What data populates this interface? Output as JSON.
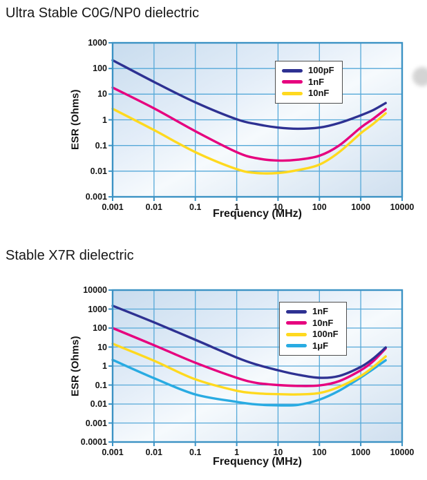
{
  "colors": {
    "background": "#ffffff",
    "grid": "#55a8d8",
    "plot_border": "#3b92c4",
    "plot_bg": [
      "#c8dcee",
      "#e3edf8",
      "#f6fafd",
      "#cfdfef"
    ],
    "legend_border": "#4d4d4d",
    "text": "#141414",
    "decoration_circle": "#c6c6c6"
  },
  "chart_data": [
    {
      "type": "line",
      "title": "Ultra Stable C0G/NP0 dielectric",
      "xlabel": "Frequency (MHz)",
      "ylabel": "ESR (Ohms)",
      "x_scale": "log",
      "y_scale": "log",
      "grid": true,
      "legend_position": "top-right",
      "x_ticks": [
        "0.001",
        "0.01",
        "0.1",
        "1",
        "10",
        "100",
        "1000",
        "10000"
      ],
      "y_ticks": [
        "1000",
        "100",
        "10",
        "1",
        "0.1",
        "0.01",
        "0.001"
      ],
      "xlog_range": [
        -3,
        4
      ],
      "ylog_range": [
        -3,
        3
      ],
      "series": [
        {
          "name": "100pF",
          "color": "#2e3192",
          "points": [
            [
              0.001,
              210
            ],
            [
              0.01,
              30
            ],
            [
              0.1,
              4.8
            ],
            [
              1,
              1.05
            ],
            [
              3,
              0.68
            ],
            [
              10,
              0.5
            ],
            [
              30,
              0.45
            ],
            [
              100,
              0.5
            ],
            [
              300,
              0.75
            ],
            [
              1000,
              1.5
            ],
            [
              2000,
              2.4
            ],
            [
              4000,
              4.5
            ]
          ]
        },
        {
          "name": "1nF",
          "color": "#e6007e",
          "points": [
            [
              0.001,
              18
            ],
            [
              0.01,
              2.8
            ],
            [
              0.1,
              0.36
            ],
            [
              1,
              0.055
            ],
            [
              3,
              0.032
            ],
            [
              10,
              0.026
            ],
            [
              30,
              0.028
            ],
            [
              100,
              0.04
            ],
            [
              300,
              0.1
            ],
            [
              1000,
              0.5
            ],
            [
              2000,
              1.1
            ],
            [
              4000,
              2.6
            ]
          ]
        },
        {
          "name": "10nF",
          "color": "#ffd91f",
          "points": [
            [
              0.001,
              2.7
            ],
            [
              0.01,
              0.4
            ],
            [
              0.1,
              0.055
            ],
            [
              1,
              0.012
            ],
            [
              3,
              0.0085
            ],
            [
              10,
              0.0085
            ],
            [
              30,
              0.011
            ],
            [
              100,
              0.018
            ],
            [
              300,
              0.055
            ],
            [
              1000,
              0.3
            ],
            [
              2000,
              0.7
            ],
            [
              4000,
              1.8
            ]
          ]
        }
      ]
    },
    {
      "type": "line",
      "title": "Stable X7R dielectric",
      "xlabel": "Frequency (MHz)",
      "ylabel": "ESR (Ohms)",
      "x_scale": "log",
      "y_scale": "log",
      "grid": true,
      "legend_position": "top-right",
      "x_ticks": [
        "0.001",
        "0.01",
        "0.1",
        "1",
        "10",
        "100",
        "1000",
        "10000"
      ],
      "y_ticks": [
        "10000",
        "1000",
        "100",
        "10",
        "1",
        "0.1",
        "0.01",
        "0.001",
        "0.0001"
      ],
      "xlog_range": [
        -3,
        4
      ],
      "ylog_range": [
        -4,
        4
      ],
      "series": [
        {
          "name": "1nF",
          "color": "#2e3192",
          "points": [
            [
              0.001,
              1500
            ],
            [
              0.01,
              200
            ],
            [
              0.1,
              24
            ],
            [
              1,
              2.8
            ],
            [
              3,
              1.2
            ],
            [
              10,
              0.6
            ],
            [
              30,
              0.35
            ],
            [
              100,
              0.24
            ],
            [
              300,
              0.3
            ],
            [
              1000,
              0.9
            ],
            [
              2000,
              2.5
            ],
            [
              4000,
              9.5
            ]
          ]
        },
        {
          "name": "10nF",
          "color": "#e6007e",
          "points": [
            [
              0.001,
              100
            ],
            [
              0.01,
              12.5
            ],
            [
              0.1,
              1.5
            ],
            [
              1,
              0.24
            ],
            [
              3,
              0.13
            ],
            [
              10,
              0.1
            ],
            [
              30,
              0.09
            ],
            [
              100,
              0.095
            ],
            [
              300,
              0.16
            ],
            [
              1000,
              0.6
            ],
            [
              2000,
              1.8
            ],
            [
              4000,
              8.5
            ]
          ]
        },
        {
          "name": "100nF",
          "color": "#ffd91f",
          "points": [
            [
              0.001,
              15
            ],
            [
              0.01,
              1.9
            ],
            [
              0.1,
              0.2
            ],
            [
              1,
              0.05
            ],
            [
              3,
              0.037
            ],
            [
              10,
              0.033
            ],
            [
              30,
              0.032
            ],
            [
              100,
              0.038
            ],
            [
              300,
              0.08
            ],
            [
              1000,
              0.3
            ],
            [
              2000,
              0.9
            ],
            [
              4000,
              3.2
            ]
          ]
        },
        {
          "name": "1μF",
          "color": "#29abe2",
          "points": [
            [
              0.001,
              2.1
            ],
            [
              0.01,
              0.23
            ],
            [
              0.1,
              0.032
            ],
            [
              1,
              0.013
            ],
            [
              3,
              0.0095
            ],
            [
              10,
              0.0085
            ],
            [
              30,
              0.009
            ],
            [
              100,
              0.017
            ],
            [
              300,
              0.05
            ],
            [
              1000,
              0.25
            ],
            [
              2000,
              0.7
            ],
            [
              4000,
              2
            ]
          ]
        }
      ]
    }
  ]
}
